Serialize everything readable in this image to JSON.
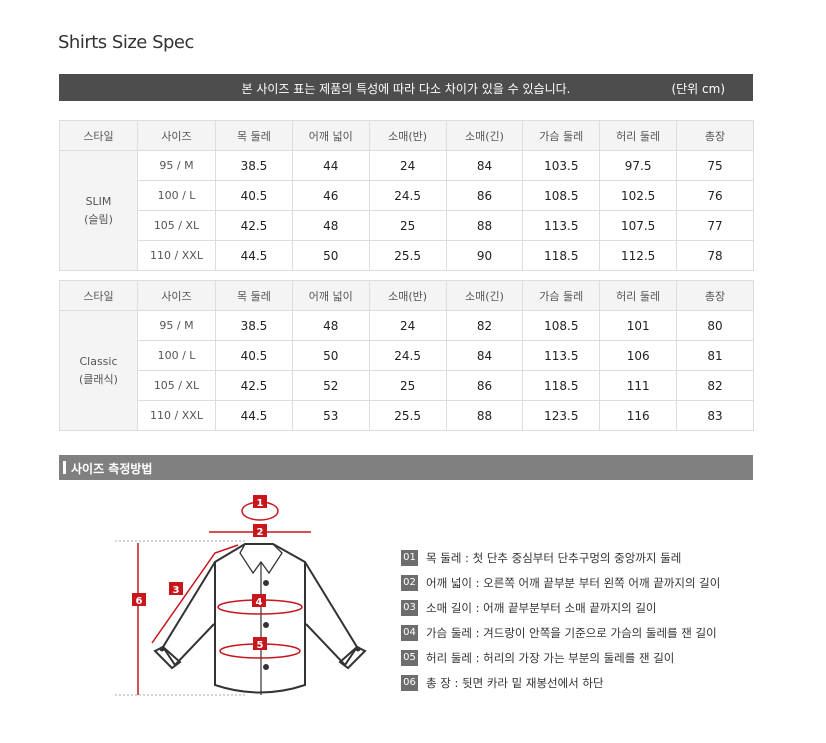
{
  "title": "Shirts Size Spec",
  "notice": {
    "message": "본 사이즈 표는 제품의 특성에 따라 다소 차이가 있을 수 있습니다.",
    "unit": "(단위 cm)"
  },
  "columns": [
    "스타일",
    "사이즈",
    "목 둘레",
    "어깨 넓이",
    "소매(반)",
    "소매(긴)",
    "가슴 둘레",
    "허리 둘레",
    "총장"
  ],
  "tables": [
    {
      "style": "SLIM",
      "style_kr": "(슬림)",
      "rows": [
        {
          "size": "95 / M",
          "values": [
            "38.5",
            "44",
            "24",
            "84",
            "103.5",
            "97.5",
            "75"
          ]
        },
        {
          "size": "100 / L",
          "values": [
            "40.5",
            "46",
            "24.5",
            "86",
            "108.5",
            "102.5",
            "76"
          ]
        },
        {
          "size": "105 / XL",
          "values": [
            "42.5",
            "48",
            "25",
            "88",
            "113.5",
            "107.5",
            "77"
          ]
        },
        {
          "size": "110 / XXL",
          "values": [
            "44.5",
            "50",
            "25.5",
            "90",
            "118.5",
            "112.5",
            "78"
          ]
        }
      ]
    },
    {
      "style": "Classic",
      "style_kr": "(클래식)",
      "rows": [
        {
          "size": "95 / M",
          "values": [
            "38.5",
            "48",
            "24",
            "82",
            "108.5",
            "101",
            "80"
          ]
        },
        {
          "size": "100 / L",
          "values": [
            "40.5",
            "50",
            "24.5",
            "84",
            "113.5",
            "106",
            "81"
          ]
        },
        {
          "size": "105 / XL",
          "values": [
            "42.5",
            "52",
            "25",
            "86",
            "118.5",
            "111",
            "82"
          ]
        },
        {
          "size": "110 / XXL",
          "values": [
            "44.5",
            "53",
            "25.5",
            "88",
            "123.5",
            "116",
            "83"
          ]
        }
      ]
    }
  ],
  "section_title": "사이즈 측정방법",
  "diagram_labels": [
    "1",
    "2",
    "3",
    "4",
    "5",
    "6"
  ],
  "accent_color": "#c8161d",
  "legend": [
    {
      "num": "01",
      "text": "목 둘레 : 첫 단추 중심부터 단추구멍의 중앙까지 둘레"
    },
    {
      "num": "02",
      "text": "어깨 넓이 : 오른쪽 어깨  끝부분 부터 왼쪽 어깨 끝까지의 길이"
    },
    {
      "num": "03",
      "text": "소매 길이 : 어깨 끝부분부터 소매 끝까지의 길이"
    },
    {
      "num": "04",
      "text": "가슴 둘레 : 겨드랑이 안쪽을 기준으로 가슴의 둘레를 잰 길이"
    },
    {
      "num": "05",
      "text": "허리 둘레 : 허리의 가장 가는 부분의 둘레를 잰 길이"
    },
    {
      "num": "06",
      "text": "총 장 : 뒷면 카라 밑 재봉선에서 하단"
    }
  ]
}
